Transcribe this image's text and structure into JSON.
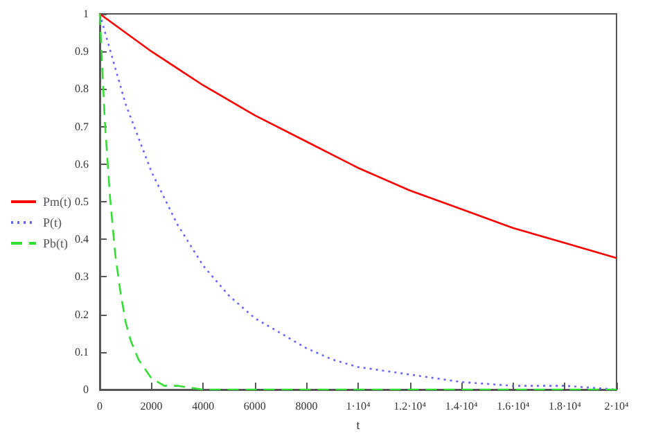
{
  "chart_data": {
    "type": "line",
    "xlabel": "t",
    "series": [
      {
        "name": "Pm(t)",
        "color": "#ff0000",
        "line_style": "solid",
        "x": [
          0,
          2000,
          4000,
          6000,
          8000,
          10000,
          12000,
          14000,
          16000,
          18000,
          20000
        ],
        "values": [
          1,
          0.9,
          0.81,
          0.73,
          0.66,
          0.59,
          0.53,
          0.48,
          0.43,
          0.39,
          0.35
        ]
      },
      {
        "name": "P(t)",
        "color": "#6666ff",
        "line_style": "dotted",
        "x": [
          0,
          1000,
          2000,
          3000,
          4000,
          5000,
          6000,
          7000,
          8000,
          9000,
          10000,
          12000,
          14000,
          16000,
          18000,
          20000
        ],
        "values": [
          1,
          0.76,
          0.58,
          0.44,
          0.33,
          0.25,
          0.19,
          0.15,
          0.11,
          0.08,
          0.06,
          0.04,
          0.02,
          0.01,
          0.01,
          0
        ]
      },
      {
        "name": "Pb(t)",
        "color": "#33dd33",
        "line_style": "dashed",
        "x": [
          0,
          200,
          400,
          600,
          800,
          1000,
          1200,
          1500,
          2000,
          2500,
          3000,
          4000,
          20000
        ],
        "values": [
          1,
          0.71,
          0.51,
          0.36,
          0.26,
          0.18,
          0.13,
          0.08,
          0.03,
          0.01,
          0.01,
          0,
          0
        ]
      }
    ],
    "xlim": [
      0,
      20000
    ],
    "xticks": [
      0,
      2000,
      4000,
      6000,
      8000,
      {
        "value": 10000,
        "label": "1·10⁴"
      },
      {
        "value": 12000,
        "label": "1.2·10⁴"
      },
      {
        "value": 14000,
        "label": "1.4·10⁴"
      },
      {
        "value": 16000,
        "label": "1.6·10⁴"
      },
      {
        "value": 18000,
        "label": "1.8·10⁴"
      },
      {
        "value": 20000,
        "label": "2·10⁴"
      }
    ],
    "ylim": [
      0,
      1
    ],
    "yticks": [
      0,
      0.1,
      0.2,
      0.3,
      0.4,
      0.5,
      0.6,
      0.7,
      0.8,
      0.9,
      1
    ],
    "grid": false,
    "legend": "left",
    "marker": "none"
  }
}
